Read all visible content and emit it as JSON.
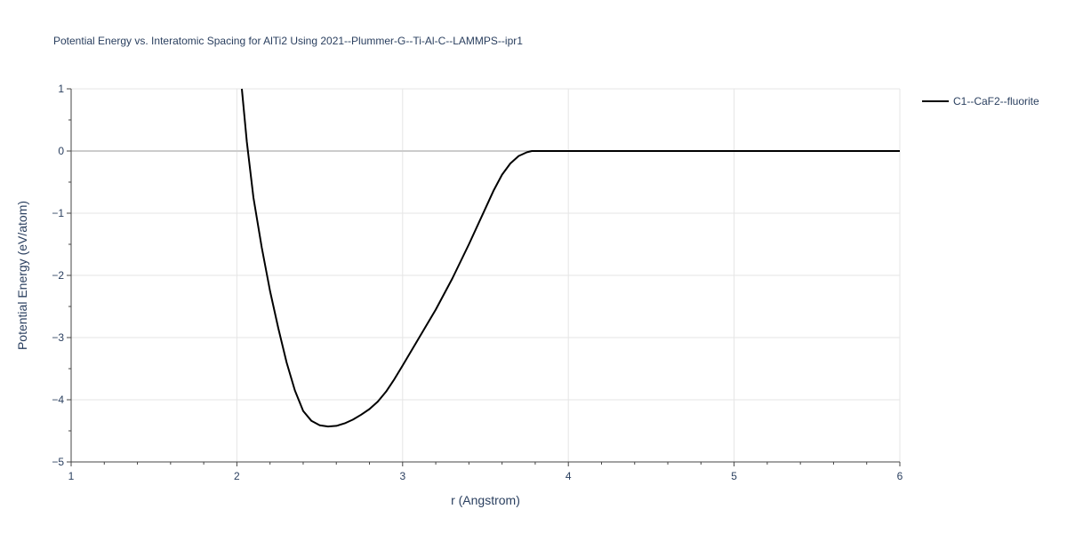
{
  "chart_data": {
    "type": "line",
    "title": "Potential Energy vs. Interatomic Spacing for AlTi2 Using 2021--Plummer-G--Ti-Al-C--LAMMPS--ipr1",
    "xlabel": "r (Angstrom)",
    "ylabel": "Potential Energy (eV/atom)",
    "xlim": [
      1,
      6
    ],
    "ylim": [
      -5,
      1
    ],
    "x_ticks": [
      1,
      2,
      3,
      4,
      5,
      6
    ],
    "x_tick_labels": [
      "1",
      "2",
      "3",
      "4",
      "5",
      "6"
    ],
    "y_ticks": [
      1,
      0,
      -1,
      -2,
      -3,
      -4,
      -5
    ],
    "y_tick_labels": [
      "1",
      "0",
      "−1",
      "−2",
      "−3",
      "−4",
      "−5"
    ],
    "grid": true,
    "legend_position": "top-right",
    "series": [
      {
        "name": "C1--CaF2--fluorite",
        "color": "#000000",
        "x": [
          2.03,
          2.06,
          2.1,
          2.15,
          2.2,
          2.25,
          2.3,
          2.35,
          2.4,
          2.45,
          2.5,
          2.55,
          2.6,
          2.65,
          2.7,
          2.75,
          2.8,
          2.85,
          2.9,
          2.95,
          3.0,
          3.1,
          3.2,
          3.3,
          3.4,
          3.5,
          3.55,
          3.6,
          3.65,
          3.7,
          3.75,
          3.78,
          3.8,
          3.85,
          4.0,
          4.5,
          5.0,
          5.5,
          6.0
        ],
        "y": [
          1.0,
          0.15,
          -0.75,
          -1.55,
          -2.25,
          -2.85,
          -3.4,
          -3.85,
          -4.18,
          -4.34,
          -4.41,
          -4.43,
          -4.42,
          -4.38,
          -4.32,
          -4.24,
          -4.15,
          -4.03,
          -3.87,
          -3.67,
          -3.45,
          -3.0,
          -2.55,
          -2.05,
          -1.5,
          -0.92,
          -0.63,
          -0.38,
          -0.2,
          -0.08,
          -0.02,
          0.0,
          0.0,
          0.0,
          0.0,
          0.0,
          0.0,
          0.0,
          0.0
        ]
      }
    ]
  }
}
